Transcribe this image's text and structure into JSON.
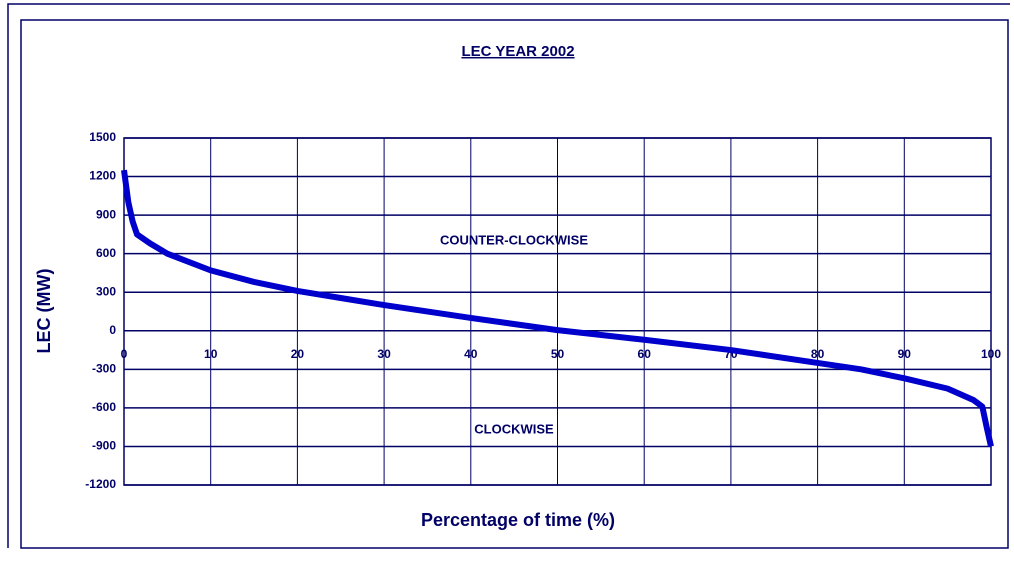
{
  "chart_data": {
    "type": "line",
    "title": "LEC YEAR 2002",
    "xlabel": "Percentage of time (%)",
    "ylabel": "LEC (MW)",
    "annotations": [
      "COUNTER-CLOCKWISE",
      "CLOCKWISE"
    ],
    "x": [
      0,
      0.5,
      1,
      1.5,
      3,
      5,
      10,
      15,
      20,
      25,
      30,
      40,
      50,
      60,
      70,
      80,
      85,
      90,
      95,
      98,
      99,
      99.5,
      100
    ],
    "series": [
      {
        "name": "LEC",
        "color": "#0000cc",
        "values": [
          1250,
          1000,
          850,
          750,
          680,
          600,
          470,
          380,
          310,
          255,
          200,
          100,
          5,
          -70,
          -150,
          -250,
          -300,
          -370,
          -450,
          -540,
          -590,
          -750,
          -900
        ]
      }
    ],
    "xlim": [
      0,
      100
    ],
    "xticks": [
      0,
      10,
      20,
      30,
      40,
      50,
      60,
      70,
      80,
      90,
      100
    ],
    "ylim": [
      -1200,
      1500
    ],
    "yticks": [
      -1200,
      -900,
      -600,
      -300,
      0,
      300,
      600,
      900,
      1200,
      1500
    ],
    "grid": true
  }
}
